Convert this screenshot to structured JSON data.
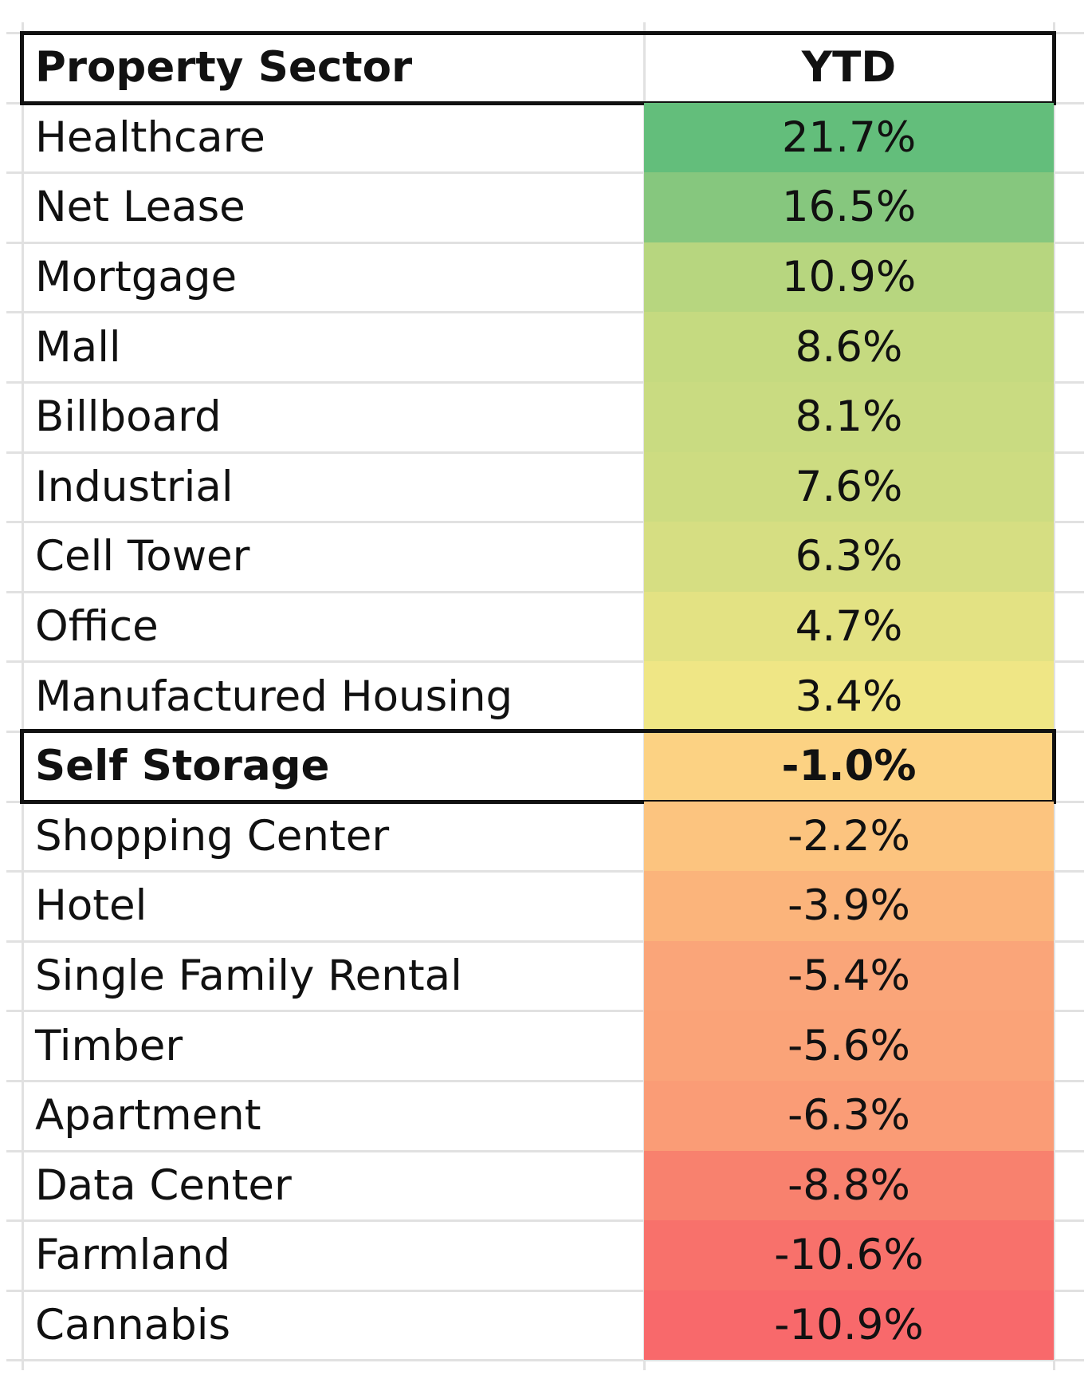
{
  "table": {
    "header": {
      "sector_label": "Property Sector",
      "ytd_label": "YTD"
    },
    "rows": [
      {
        "sector": "Healthcare",
        "ytd": "21.7%",
        "color": "#63be7b"
      },
      {
        "sector": "Net Lease",
        "ytd": "16.5%",
        "color": "#86c77e"
      },
      {
        "sector": "Mortgage",
        "ytd": "10.9%",
        "color": "#b7d67f"
      },
      {
        "sector": "Mall",
        "ytd": "8.6%",
        "color": "#c5da80"
      },
      {
        "sector": "Billboard",
        "ytd": "8.1%",
        "color": "#c9db81"
      },
      {
        "sector": "Industrial",
        "ytd": "7.6%",
        "color": "#cddc81"
      },
      {
        "sector": "Cell Tower",
        "ytd": "6.3%",
        "color": "#d6de82"
      },
      {
        "sector": "Office",
        "ytd": "4.7%",
        "color": "#e3e283"
      },
      {
        "sector": "Manufactured Housing",
        "ytd": "3.4%",
        "color": "#efe685"
      },
      {
        "sector": "Self Storage",
        "ytd": "-1.0%",
        "color": "#fcd283",
        "highlight": true
      },
      {
        "sector": "Shopping Center",
        "ytd": "-2.2%",
        "color": "#fcc47f"
      },
      {
        "sector": "Hotel",
        "ytd": "-3.9%",
        "color": "#fbb47b"
      },
      {
        "sector": "Single Family Rental",
        "ytd": "-5.4%",
        "color": "#faa579"
      },
      {
        "sector": "Timber",
        "ytd": "-5.6%",
        "color": "#faa378"
      },
      {
        "sector": "Apartment",
        "ytd": "-6.3%",
        "color": "#fa9c76"
      },
      {
        "sector": "Data Center",
        "ytd": "-8.8%",
        "color": "#f8816e"
      },
      {
        "sector": "Farmland",
        "ytd": "-10.6%",
        "color": "#f8716b"
      },
      {
        "sector": "Cannabis",
        "ytd": "-10.9%",
        "color": "#f8696b"
      }
    ]
  }
}
